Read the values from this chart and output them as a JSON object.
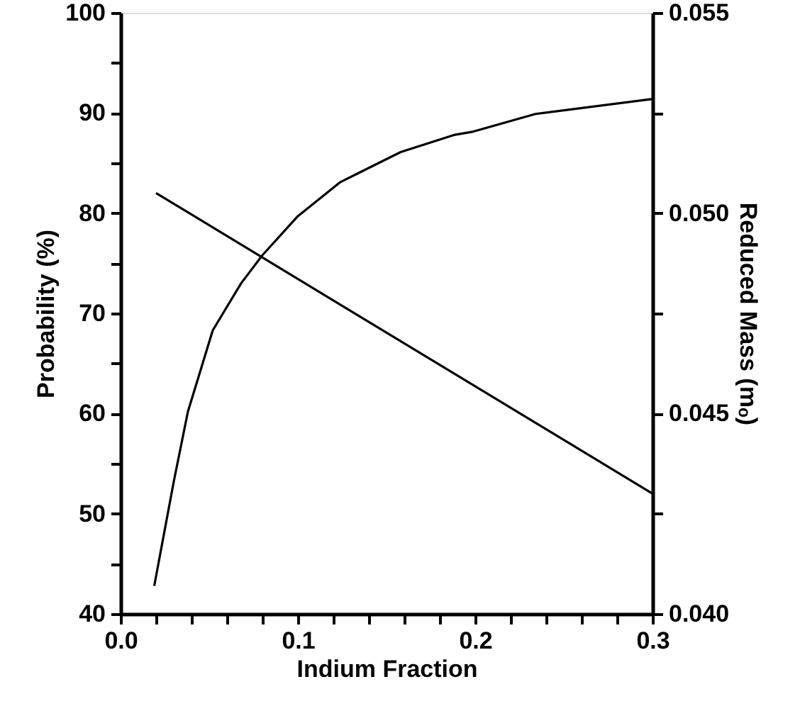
{
  "chart_data": {
    "type": "line",
    "xlabel": "Indium Fraction",
    "ylabel": "Probability (%)",
    "y2label": "Reduced Mass (mₒ)",
    "xlim": [
      0,
      0.3
    ],
    "xticks": [
      {
        "value": 0,
        "label": "0.0"
      },
      {
        "value": 0.02,
        "label": null
      },
      {
        "value": 0.04,
        "label": null
      },
      {
        "value": 0.06,
        "label": null
      },
      {
        "value": 0.08,
        "label": null
      },
      0.1,
      {
        "value": 0.12,
        "label": null
      },
      {
        "value": 0.14,
        "label": null
      },
      {
        "value": 0.16,
        "label": null
      },
      {
        "value": 0.18,
        "label": null
      },
      0.2,
      {
        "value": 0.22,
        "label": null
      },
      {
        "value": 0.24,
        "label": null
      },
      {
        "value": 0.26,
        "label": null
      },
      {
        "value": 0.28,
        "label": null
      },
      0.3
    ],
    "ylim": [
      40,
      100
    ],
    "yticks": [
      40,
      {
        "value": 45,
        "label": null
      },
      50,
      {
        "value": 55,
        "label": null
      },
      60,
      {
        "value": 65,
        "label": null
      },
      70,
      {
        "value": 75,
        "label": null
      },
      80,
      {
        "value": 85,
        "label": null
      },
      90,
      {
        "value": 95,
        "label": null
      },
      100
    ],
    "y2lim": [
      0.04,
      0.055
    ],
    "y2ticks": [
      {
        "value": 0.04,
        "label": "0.040"
      },
      {
        "value": 0.0425,
        "label": null
      },
      0.045,
      {
        "value": 0.0475,
        "label": null
      },
      {
        "value": 0.05,
        "label": "0.050"
      },
      {
        "value": 0.0525,
        "label": null
      },
      0.055
    ],
    "grid": false,
    "line_style": "solid",
    "marker": "none",
    "series": [
      {
        "color": "#000000",
        "x": [
          0.019,
          0.03,
          0.038,
          0.052,
          0.068,
          0.08,
          0.1,
          0.124,
          0.158,
          0.188,
          0.198,
          0.234,
          0.3
        ],
        "values": [
          42.8,
          53.2,
          60.2,
          68.3,
          73.0,
          75.8,
          79.7,
          83.1,
          86.1,
          87.8,
          88.1,
          89.9,
          91.4
        ]
      },
      {
        "color": "#000000",
        "axis": "y2",
        "x": [
          0.02,
          0.3
        ],
        "values": [
          0.0505,
          0.043
        ]
      }
    ]
  }
}
